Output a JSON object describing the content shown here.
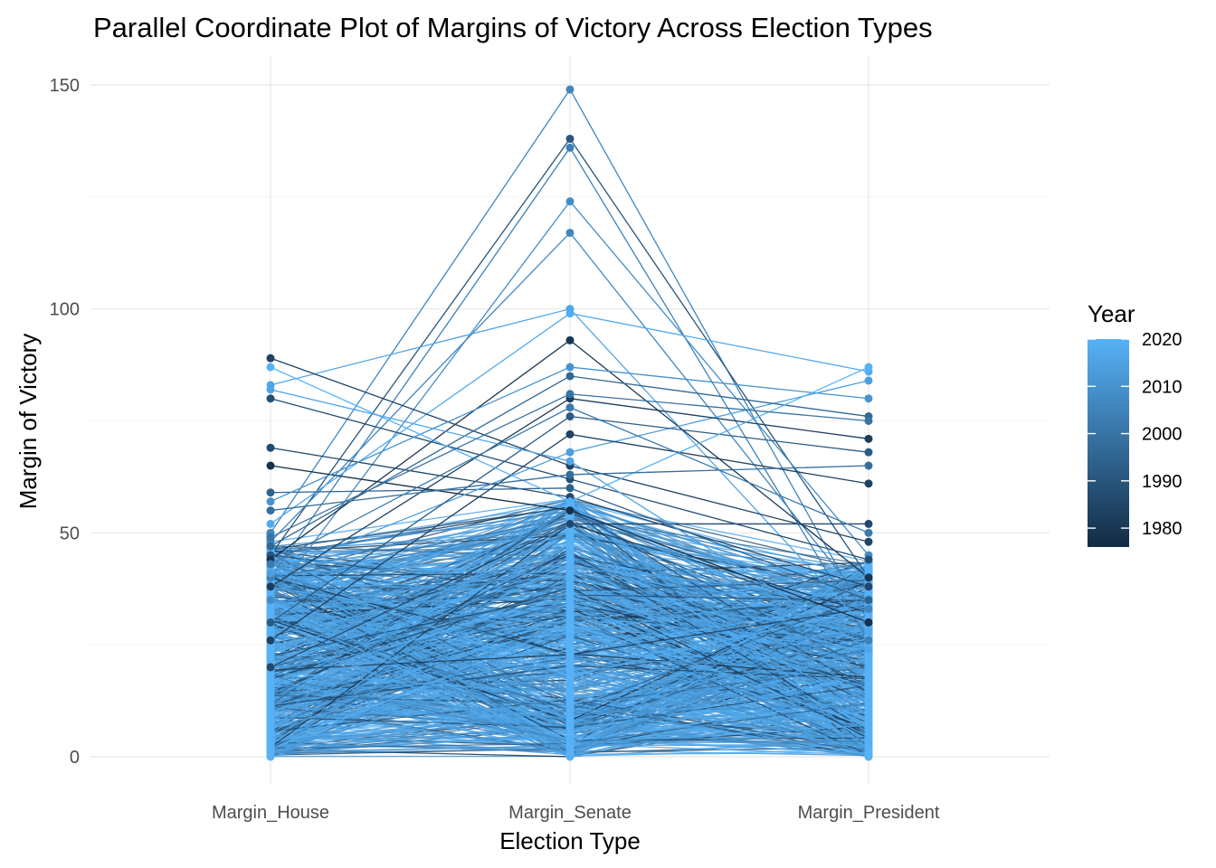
{
  "chart_data": {
    "type": "parallel-coordinates",
    "title": "Parallel Coordinate Plot of Margins of Victory Across Election Types",
    "xlabel": "Election Type",
    "ylabel": "Margin of Victory",
    "categories": [
      "Margin_House",
      "Margin_Senate",
      "Margin_President"
    ],
    "ylim": [
      -6,
      156
    ],
    "y_ticks": [
      0,
      50,
      100,
      150
    ],
    "y_tick_labels": [
      "0",
      "50",
      "100",
      "150"
    ],
    "grid": true,
    "legend": {
      "title": "Year",
      "placement": "right",
      "type": "colorbar",
      "range": [
        1976,
        2020
      ],
      "ticks": [
        1980,
        1990,
        2000,
        2010,
        2020
      ],
      "tick_labels": [
        "1980",
        "1990",
        "2000",
        "2010",
        "2020"
      ],
      "color_low": "#132b43",
      "color_high": "#56b1f7"
    },
    "highlighted_lines": [
      {
        "year": 2006,
        "values": [
          50,
          149,
          30
        ]
      },
      {
        "year": 1990,
        "values": [
          45,
          138,
          40
        ]
      },
      {
        "year": 2004,
        "values": [
          40,
          136,
          26
        ]
      },
      {
        "year": 2008,
        "values": [
          35,
          124,
          45
        ]
      },
      {
        "year": 2006,
        "values": [
          48,
          117,
          33
        ]
      },
      {
        "year": 2016,
        "values": [
          83,
          100,
          28
        ]
      },
      {
        "year": 2018,
        "values": [
          52,
          99,
          86
        ]
      },
      {
        "year": 1980,
        "values": [
          44,
          93,
          40
        ]
      },
      {
        "year": 1984,
        "values": [
          89,
          65,
          48
        ]
      },
      {
        "year": 1988,
        "values": [
          80,
          62,
          44
        ]
      },
      {
        "year": 1986,
        "values": [
          69,
          58,
          38
        ]
      },
      {
        "year": 1994,
        "values": [
          59,
          60,
          35
        ]
      },
      {
        "year": 1978,
        "values": [
          65,
          55,
          30
        ]
      },
      {
        "year": 2010,
        "values": [
          57,
          87,
          80
        ]
      },
      {
        "year": 2014,
        "values": [
          41,
          68,
          84
        ]
      },
      {
        "year": 1996,
        "values": [
          47,
          85,
          76
        ]
      },
      {
        "year": 1982,
        "values": [
          38,
          80,
          71
        ]
      },
      {
        "year": 1992,
        "values": [
          30,
          76,
          68
        ]
      },
      {
        "year": 1984,
        "values": [
          26,
          72,
          61
        ]
      },
      {
        "year": 1986,
        "values": [
          20,
          52,
          52
        ]
      },
      {
        "year": 2020,
        "values": [
          87,
          57,
          87
        ]
      },
      {
        "year": 2016,
        "values": [
          82,
          66,
          24
        ]
      },
      {
        "year": 2000,
        "values": [
          49,
          81,
          75
        ]
      },
      {
        "year": 1998,
        "values": [
          55,
          63,
          65
        ]
      },
      {
        "year": 2002,
        "values": [
          43,
          78,
          50
        ]
      }
    ]
  }
}
